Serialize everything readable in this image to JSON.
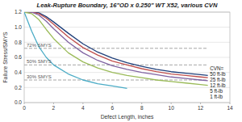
{
  "chart_data": {
    "type": "line",
    "title": "Leak-Rupture Boundary, 16\"OD x 0.250\" WT X52, various CVN",
    "x_label": "Defect Length, inches",
    "y_label": "Failure Stress/SMYS",
    "legend_title": "CVN=",
    "legend": "right",
    "grid": true,
    "xlim": [
      0,
      14
    ],
    "xticks": [
      0,
      2,
      4,
      6,
      8,
      10,
      12,
      14
    ],
    "ylim": [
      0,
      1.2
    ],
    "yticks": [
      {
        "value": 0,
        "label": "0.0"
      },
      {
        "value": 0.2,
        "label": "0.2"
      },
      {
        "value": 0.4,
        "label": "0.4"
      },
      {
        "value": 0.6,
        "label": "0.6"
      },
      {
        "value": 0.8,
        "label": "0.8"
      },
      {
        "value": 1.0,
        "label": "1.0"
      },
      {
        "value": 1.2,
        "label": "1.2"
      }
    ],
    "reference_lines": [
      {
        "value": 0.72,
        "label": "72% SMYS"
      },
      {
        "value": 0.5,
        "label": "50% SMYS"
      },
      {
        "value": 0.3,
        "label": "30% SMYS"
      }
    ],
    "x": [
      0,
      0.5,
      1,
      1.5,
      2,
      3,
      4,
      5,
      6,
      7,
      8,
      9,
      10,
      11,
      12,
      12.5
    ],
    "series": [
      {
        "name": "50 ft-lb",
        "color": "#1f3f7a",
        "values": [
          1.2,
          1.2,
          1.19,
          1.14,
          1.07,
          0.92,
          0.78,
          0.67,
          0.59,
          0.53,
          0.48,
          0.44,
          0.41,
          0.39,
          0.37,
          0.36
        ]
      },
      {
        "name": "25 ft-lb",
        "color": "#c0504d",
        "values": [
          1.2,
          1.2,
          1.18,
          1.12,
          1.04,
          0.87,
          0.73,
          0.63,
          0.55,
          0.5,
          0.45,
          0.41,
          0.38,
          0.36,
          0.34,
          0.33
        ]
      },
      {
        "name": "12 ft-lb",
        "color": "#8064a2",
        "values": [
          1.2,
          1.2,
          1.16,
          1.08,
          0.98,
          0.8,
          0.66,
          0.56,
          0.49,
          0.44,
          0.4,
          0.37,
          0.34,
          0.32,
          0.3,
          0.29
        ]
      },
      {
        "name": "5 ft-lb",
        "color": "#9bbb59",
        "values": [
          1.2,
          1.18,
          1.1,
          0.97,
          0.85,
          0.66,
          0.54,
          0.46,
          0.4,
          0.36,
          0.33,
          0.3,
          0.28,
          0.26,
          0.24,
          0.23
        ]
      },
      {
        "name": "1 ft-lb",
        "color": "#4bacc6",
        "values": [
          1.2,
          0.95,
          0.74,
          0.6,
          0.5,
          0.38,
          0.3,
          0.25,
          0.22,
          0.19,
          null,
          null,
          null,
          null,
          null,
          null
        ]
      }
    ]
  }
}
